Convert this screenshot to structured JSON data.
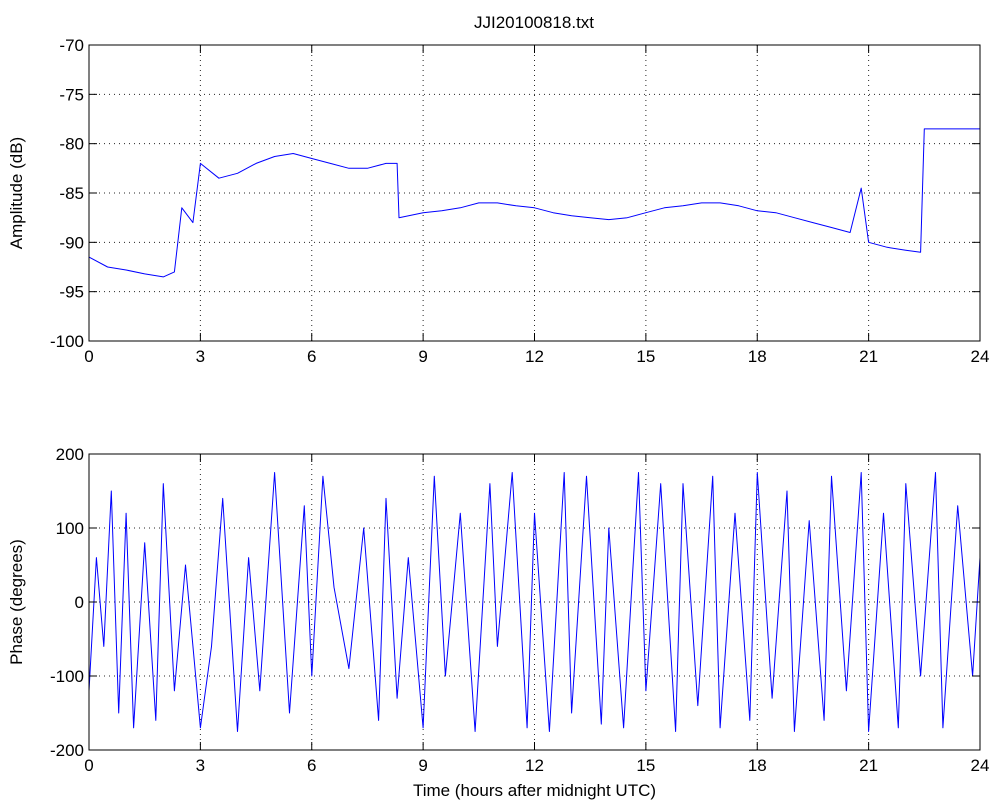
{
  "chart_data": [
    {
      "type": "line",
      "title": "JJI20100818.txt",
      "xlabel": "",
      "ylabel": "Amplitude (dB)",
      "xlim": [
        0,
        24
      ],
      "ylim": [
        -100,
        -70
      ],
      "xticks": [
        0,
        3,
        6,
        9,
        12,
        15,
        18,
        21,
        24
      ],
      "yticks": [
        -100,
        -95,
        -90,
        -85,
        -80,
        -75,
        -70
      ],
      "grid": true,
      "color": "#0000ff",
      "series": [
        {
          "x": [
            0,
            0.5,
            1.0,
            1.5,
            2.0,
            2.3,
            2.5,
            2.8,
            3.0,
            3.5,
            4.0,
            4.5,
            5.0,
            5.5,
            6.0,
            6.5,
            7.0,
            7.5,
            8.0,
            8.3,
            8.35,
            9.0,
            9.5,
            10.0,
            10.5,
            11.0,
            11.5,
            12.0,
            12.5,
            13.0,
            13.5,
            14.0,
            14.5,
            15.0,
            15.5,
            16.0,
            16.5,
            17.0,
            17.5,
            18.0,
            18.5,
            19.0,
            19.5,
            20.0,
            20.5,
            20.8,
            21.0,
            21.5,
            22.0,
            22.4,
            22.5,
            23.0,
            23.5,
            24.0
          ],
          "values": [
            -91.5,
            -92.5,
            -92.8,
            -93.2,
            -93.5,
            -93.0,
            -86.5,
            -88.0,
            -82.0,
            -83.5,
            -83.0,
            -82.0,
            -81.3,
            -81.0,
            -81.5,
            -82.0,
            -82.5,
            -82.5,
            -82.0,
            -82.0,
            -87.5,
            -87.0,
            -86.8,
            -86.5,
            -86.0,
            -86.0,
            -86.3,
            -86.5,
            -87.0,
            -87.3,
            -87.5,
            -87.7,
            -87.5,
            -87.0,
            -86.5,
            -86.3,
            -86.0,
            -86.0,
            -86.3,
            -86.8,
            -87.0,
            -87.5,
            -88.0,
            -88.5,
            -89.0,
            -84.5,
            -90.0,
            -90.5,
            -90.8,
            -91.0,
            -78.5,
            -78.5,
            -78.5,
            -78.5
          ]
        }
      ]
    },
    {
      "type": "line",
      "title": "",
      "xlabel": "Time (hours after midnight UTC)",
      "ylabel": "Phase (degrees)",
      "xlim": [
        0,
        24
      ],
      "ylim": [
        -200,
        200
      ],
      "xticks": [
        0,
        3,
        6,
        9,
        12,
        15,
        18,
        21,
        24
      ],
      "yticks": [
        -200,
        -100,
        0,
        100,
        200
      ],
      "grid": true,
      "color": "#0000ff",
      "series": [
        {
          "x": [
            0,
            0.2,
            0.4,
            0.6,
            0.8,
            1.0,
            1.2,
            1.5,
            1.8,
            2.0,
            2.3,
            2.6,
            3.0,
            3.3,
            3.6,
            4.0,
            4.3,
            4.6,
            5.0,
            5.4,
            5.8,
            6.0,
            6.3,
            6.6,
            7.0,
            7.4,
            7.8,
            8.0,
            8.3,
            8.6,
            9.0,
            9.3,
            9.6,
            10.0,
            10.4,
            10.8,
            11.0,
            11.4,
            11.8,
            12.0,
            12.4,
            12.8,
            13.0,
            13.4,
            13.8,
            14.0,
            14.4,
            14.8,
            15.0,
            15.4,
            15.8,
            16.0,
            16.4,
            16.8,
            17.0,
            17.4,
            17.8,
            18.0,
            18.4,
            18.8,
            19.0,
            19.4,
            19.8,
            20.0,
            20.4,
            20.8,
            21.0,
            21.4,
            21.8,
            22.0,
            22.4,
            22.8,
            23.0,
            23.4,
            23.8,
            24.0
          ],
          "values": [
            -120,
            60,
            -60,
            150,
            -150,
            120,
            -170,
            80,
            -160,
            160,
            -120,
            50,
            -170,
            -60,
            140,
            -175,
            60,
            -120,
            175,
            -150,
            130,
            -100,
            170,
            20,
            -90,
            100,
            -160,
            140,
            -130,
            60,
            -170,
            170,
            -100,
            120,
            -175,
            160,
            -60,
            175,
            -170,
            120,
            -175,
            175,
            -150,
            170,
            -165,
            100,
            -170,
            175,
            -120,
            160,
            -175,
            160,
            -140,
            170,
            -170,
            120,
            -160,
            175,
            -130,
            150,
            -175,
            110,
            -160,
            170,
            -120,
            175,
            -175,
            120,
            -170,
            160,
            -100,
            175,
            -170,
            130,
            -100,
            60
          ]
        }
      ]
    }
  ]
}
